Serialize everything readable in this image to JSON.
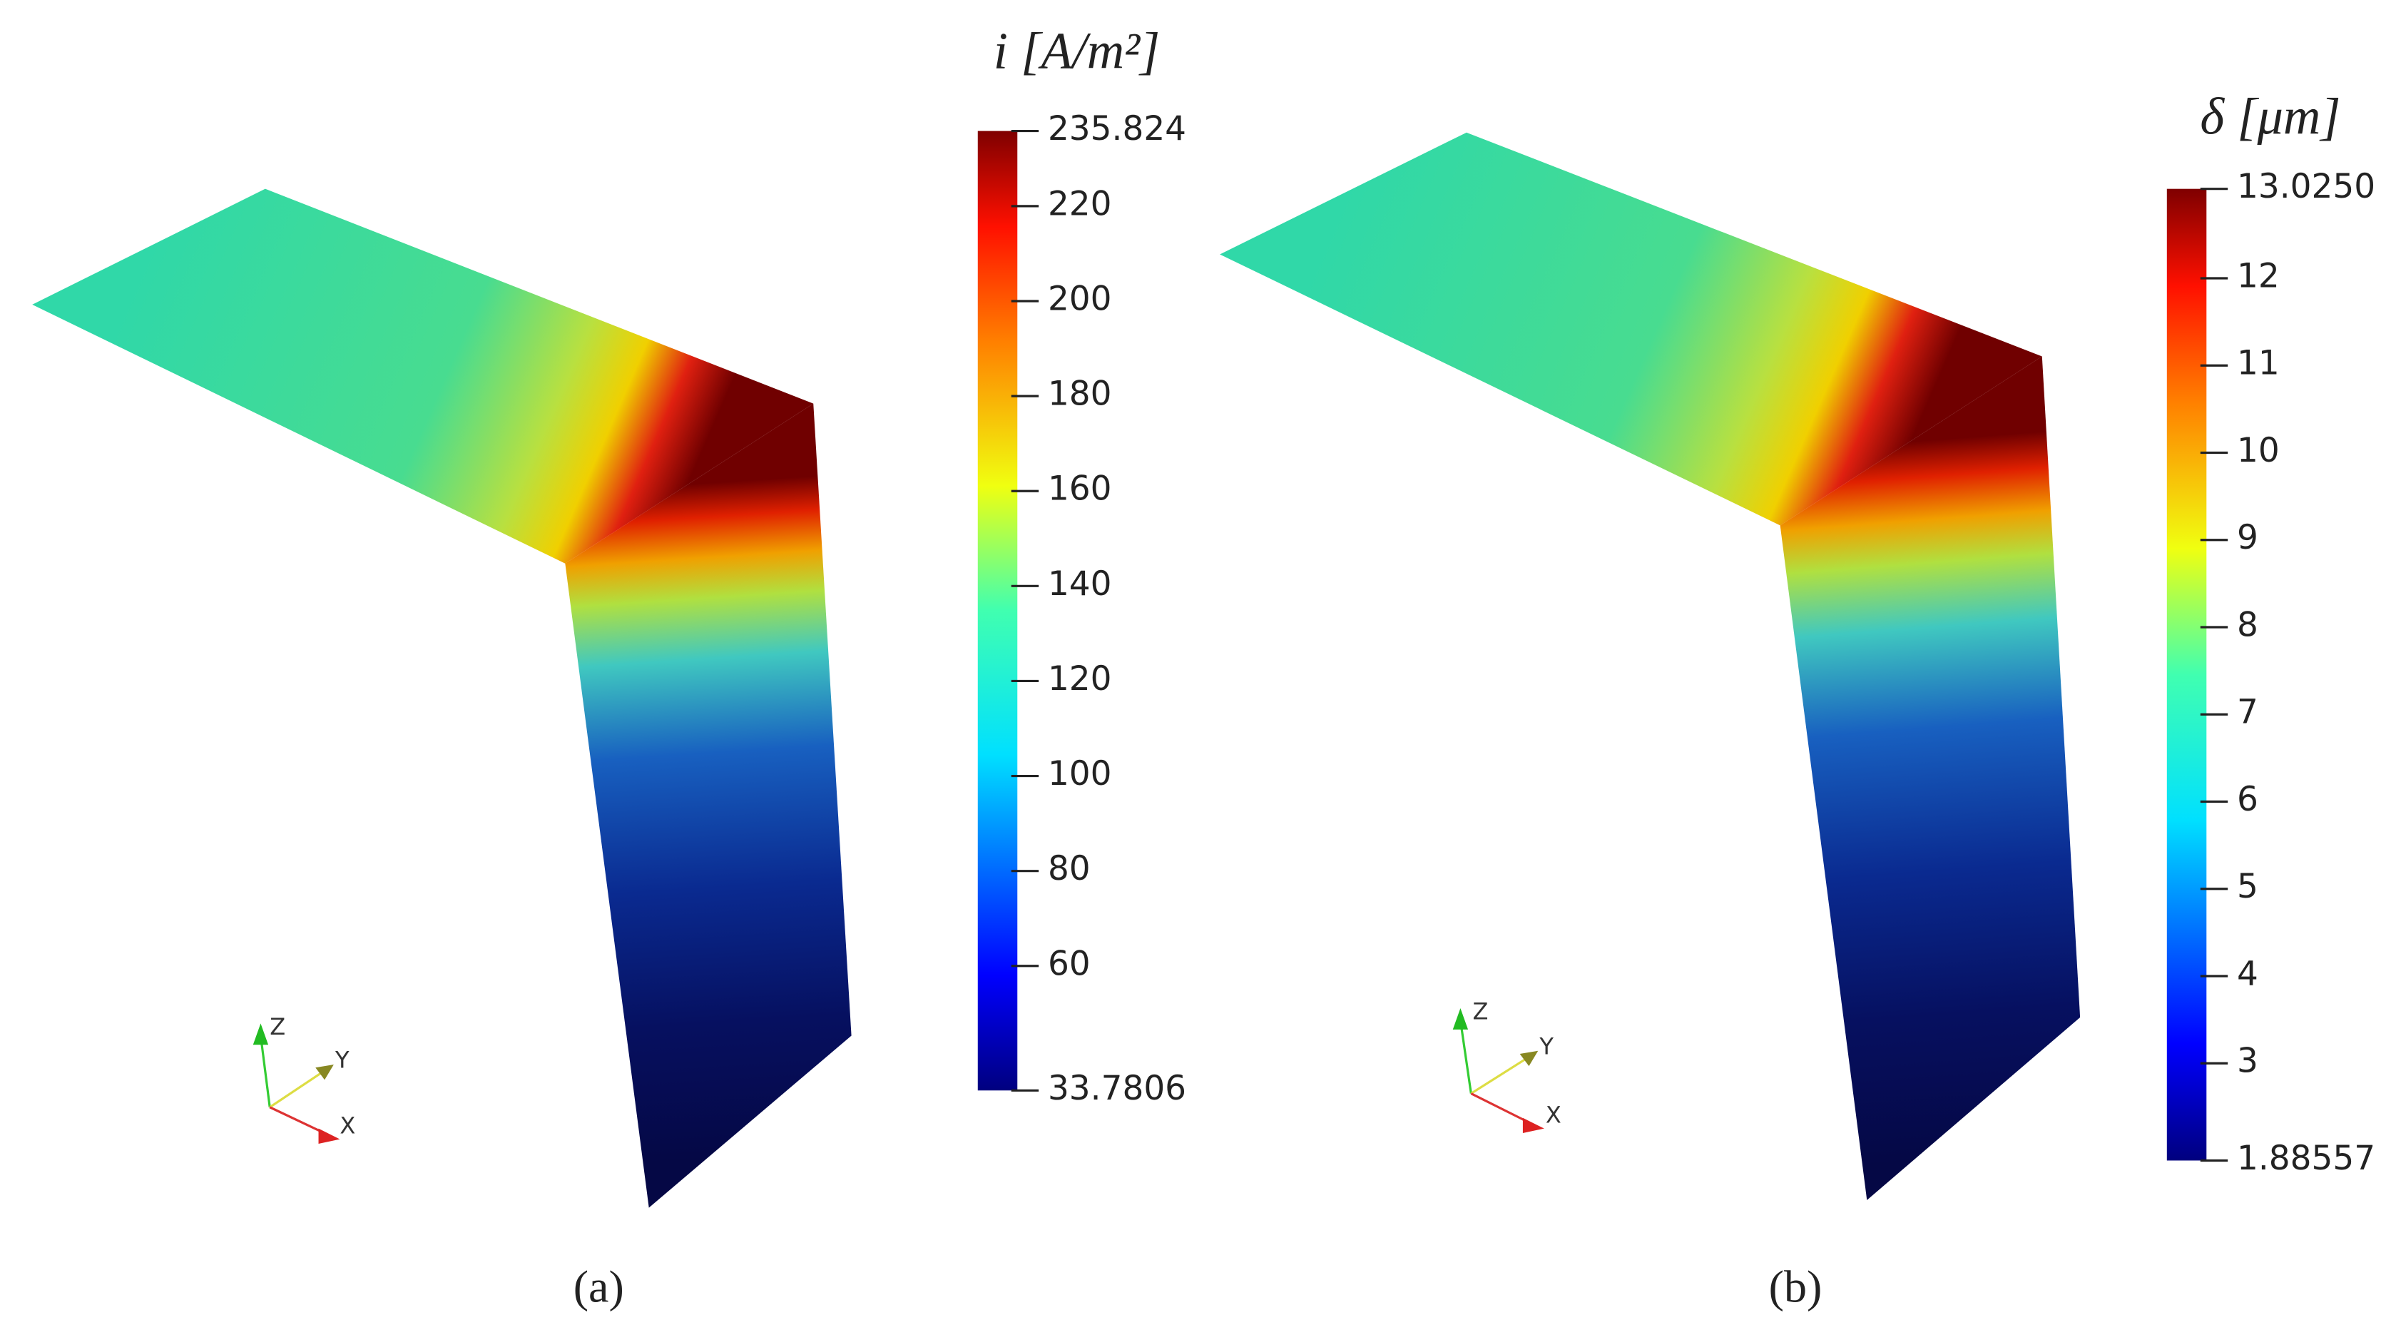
{
  "chart_data": [
    {
      "type": "colorbar",
      "title": "i [A/m²]",
      "caption": "(a)",
      "clim": [
        33.7806,
        235.824
      ],
      "ticks": [
        33.7806,
        60,
        80,
        100,
        120,
        140,
        160,
        180,
        200,
        220,
        235.824
      ],
      "triad_labels": [
        "Z",
        "Y",
        "X"
      ]
    },
    {
      "type": "colorbar",
      "title": "δ [μm]",
      "caption": "(b)",
      "clim": [
        1.88557,
        13.025
      ],
      "ticks": [
        1.88557,
        3,
        4,
        5,
        6,
        7,
        8,
        9,
        10,
        11,
        12,
        {
          "value": 13.025,
          "label": "13.0250"
        }
      ],
      "triad_labels": [
        "Z",
        "Y",
        "X"
      ]
    }
  ]
}
